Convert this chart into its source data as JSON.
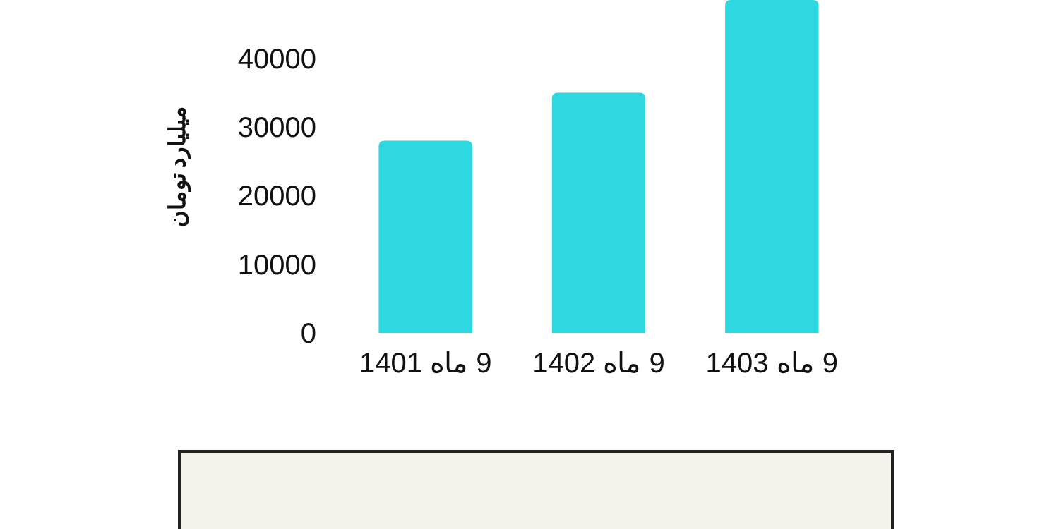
{
  "chart_data": {
    "type": "bar",
    "ylabel": "میلیارد تومان",
    "categories": [
      "9 ماه 1401",
      "9 ماه 1402",
      "9 ماه 1403"
    ],
    "values": [
      28000,
      35000,
      48500
    ],
    "color": "#2ed8e0",
    "ylim": [
      0,
      48500
    ],
    "yticks": [
      0,
      10000,
      20000,
      30000,
      40000
    ],
    "grid": false
  }
}
